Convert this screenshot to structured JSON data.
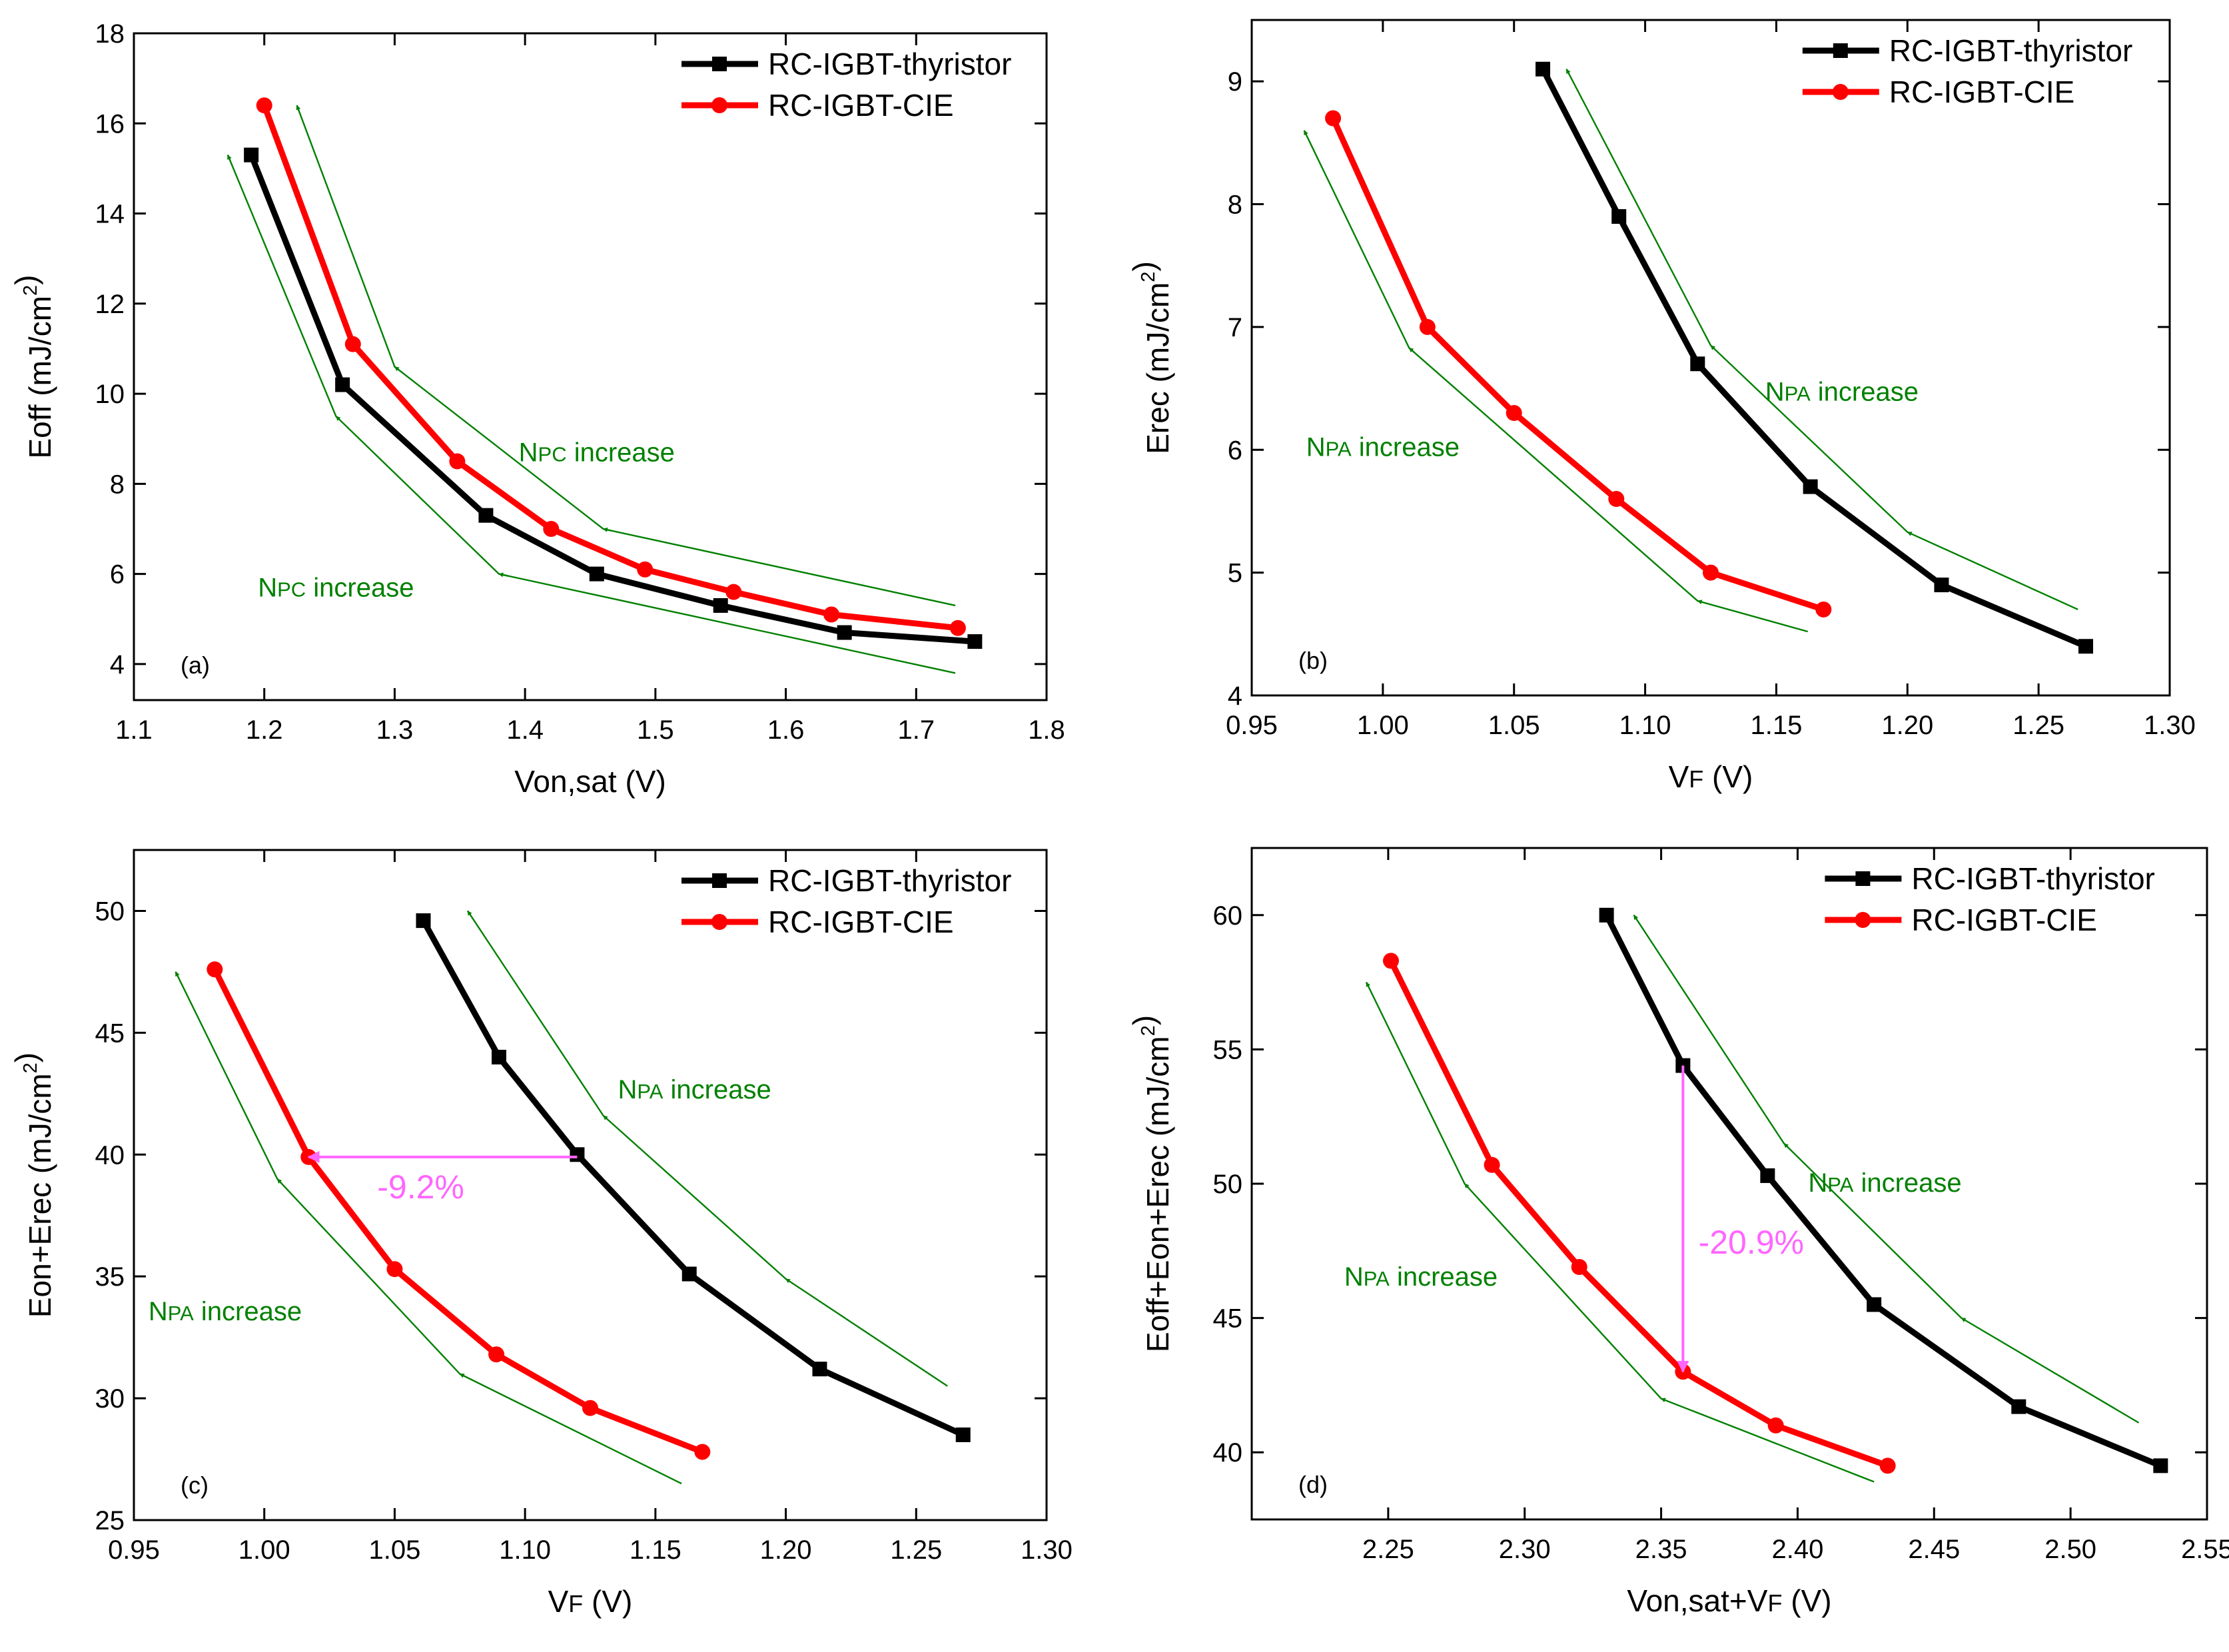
{
  "chart_data": [
    {
      "type": "line",
      "panel_label": "(a)",
      "xlabel": "Von,sat (V)",
      "ylabel": "Eoff (mJ/cm2)",
      "xlim": [
        1.1,
        1.8
      ],
      "ylim": [
        3.2,
        18
      ],
      "xticks": [
        1.1,
        1.2,
        1.3,
        1.4,
        1.5,
        1.6,
        1.7,
        1.8
      ],
      "yticks": [
        4,
        6,
        8,
        10,
        12,
        14,
        16,
        18
      ],
      "xtick_decimals": 1,
      "ytick_decimals": 0,
      "legend": {
        "position": "top-right",
        "items": [
          "RC-IGBT-thyristor",
          "RC-IGBT-CIE"
        ]
      },
      "series": [
        {
          "name": "RC-IGBT-thyristor",
          "color": "#000000",
          "marker": "square",
          "x": [
            1.19,
            1.26,
            1.37,
            1.455,
            1.55,
            1.645,
            1.745
          ],
          "y": [
            15.3,
            10.2,
            7.3,
            6.0,
            5.3,
            4.7,
            4.5
          ]
        },
        {
          "name": "RC-IGBT-CIE",
          "color": "#ff0000",
          "marker": "circle",
          "x": [
            1.2,
            1.268,
            1.348,
            1.42,
            1.492,
            1.56,
            1.635,
            1.732
          ],
          "y": [
            16.4,
            11.1,
            8.5,
            7.0,
            6.1,
            5.6,
            5.1,
            4.8
          ]
        }
      ],
      "guides": [
        {
          "color": "#008000",
          "points": [
            [
              1.73,
              5.3
            ],
            [
              1.46,
              7.0
            ],
            [
              1.3,
              10.6
            ],
            [
              1.225,
              16.4
            ]
          ]
        },
        {
          "color": "#008000",
          "points": [
            [
              1.73,
              3.8
            ],
            [
              1.38,
              6.0
            ],
            [
              1.255,
              9.5
            ],
            [
              1.172,
              15.3
            ]
          ]
        }
      ],
      "texts": [
        {
          "text": "NPC increase",
          "x": 1.455,
          "y": 8.5,
          "color": "#008000"
        },
        {
          "text": "NPC increase",
          "x": 1.255,
          "y": 5.5,
          "color": "#008000"
        }
      ],
      "measures": []
    },
    {
      "type": "line",
      "panel_label": "(b)",
      "xlabel": "VF (V)",
      "ylabel": "Erec (mJ/cm2)",
      "xlim": [
        0.95,
        1.3
      ],
      "ylim": [
        4,
        9.5
      ],
      "xticks": [
        0.95,
        1.0,
        1.05,
        1.1,
        1.15,
        1.2,
        1.25,
        1.3
      ],
      "yticks": [
        4,
        5,
        6,
        7,
        8,
        9
      ],
      "xtick_decimals": 2,
      "ytick_decimals": 0,
      "legend": {
        "position": "top-right",
        "items": [
          "RC-IGBT-thyristor",
          "RC-IGBT-CIE"
        ]
      },
      "series": [
        {
          "name": "RC-IGBT-thyristor",
          "color": "#000000",
          "marker": "square",
          "x": [
            1.061,
            1.09,
            1.12,
            1.163,
            1.213,
            1.268
          ],
          "y": [
            9.1,
            7.9,
            6.7,
            5.7,
            4.9,
            4.4
          ]
        },
        {
          "name": "RC-IGBT-CIE",
          "color": "#ff0000",
          "marker": "circle",
          "x": [
            0.981,
            1.017,
            1.05,
            1.089,
            1.125,
            1.168
          ],
          "y": [
            8.7,
            7.0,
            6.3,
            5.6,
            5.0,
            4.7
          ]
        }
      ],
      "guides": [
        {
          "color": "#008000",
          "points": [
            [
              1.265,
              4.7
            ],
            [
              1.2,
              5.33
            ],
            [
              1.125,
              6.85
            ],
            [
              1.07,
              9.1
            ]
          ]
        },
        {
          "color": "#008000",
          "points": [
            [
              1.162,
              4.52
            ],
            [
              1.12,
              4.77
            ],
            [
              1.01,
              6.83
            ],
            [
              0.97,
              8.6
            ]
          ]
        }
      ],
      "texts": [
        {
          "text": "NPA increase",
          "x": 1.175,
          "y": 6.4,
          "color": "#008000"
        },
        {
          "text": "NPA increase",
          "x": 1.0,
          "y": 5.95,
          "color": "#008000"
        }
      ],
      "measures": []
    },
    {
      "type": "line",
      "panel_label": "(c)",
      "xlabel": "VF (V)",
      "ylabel": "Eon+Erec (mJ/cm2)",
      "xlim": [
        0.95,
        1.3
      ],
      "ylim": [
        25,
        52.5
      ],
      "xticks": [
        0.95,
        1.0,
        1.05,
        1.1,
        1.15,
        1.2,
        1.25,
        1.3
      ],
      "yticks": [
        25,
        30,
        35,
        40,
        45,
        50
      ],
      "xtick_decimals": 2,
      "ytick_decimals": 0,
      "legend": {
        "position": "top-right",
        "items": [
          "RC-IGBT-thyristor",
          "RC-IGBT-CIE"
        ]
      },
      "series": [
        {
          "name": "RC-IGBT-thyristor",
          "color": "#000000",
          "marker": "square",
          "x": [
            1.061,
            1.09,
            1.12,
            1.163,
            1.213,
            1.268
          ],
          "y": [
            49.6,
            44.0,
            40.0,
            35.1,
            31.2,
            28.5
          ]
        },
        {
          "name": "RC-IGBT-CIE",
          "color": "#ff0000",
          "marker": "circle",
          "x": [
            0.981,
            1.017,
            1.05,
            1.089,
            1.125,
            1.168
          ],
          "y": [
            47.6,
            39.9,
            35.3,
            31.8,
            29.6,
            27.8
          ]
        }
      ],
      "guides": [
        {
          "color": "#008000",
          "points": [
            [
              1.262,
              30.5
            ],
            [
              1.2,
              34.9
            ],
            [
              1.13,
              41.6
            ],
            [
              1.078,
              50.0
            ]
          ]
        },
        {
          "color": "#008000",
          "points": [
            [
              1.16,
              26.5
            ],
            [
              1.075,
              31.0
            ],
            [
              1.005,
              39.0
            ],
            [
              0.966,
              47.5
            ]
          ]
        }
      ],
      "texts": [
        {
          "text": "NPA increase",
          "x": 1.165,
          "y": 42.3,
          "color": "#008000"
        },
        {
          "text": "NPA increase",
          "x": 0.985,
          "y": 33.2,
          "color": "#008000"
        }
      ],
      "measures": [
        {
          "color": "#ff66ff",
          "from": [
            1.12,
            39.9
          ],
          "to": [
            1.017,
            39.9
          ],
          "text": "-9.2%",
          "tx": 1.06,
          "ty": 38.2
        }
      ]
    },
    {
      "type": "line",
      "panel_label": "(d)",
      "xlabel": "Von,sat+VF (V)",
      "ylabel": "Eoff+Eon+Erec (mJ/cm2)",
      "xlim": [
        2.2,
        2.55
      ],
      "ylim": [
        37.5,
        62.5
      ],
      "xticks": [
        2.25,
        2.3,
        2.35,
        2.4,
        2.45,
        2.5,
        2.55
      ],
      "yticks": [
        40,
        45,
        50,
        55,
        60
      ],
      "xtick_decimals": 2,
      "ytick_decimals": 0,
      "legend": {
        "position": "top-right",
        "items": [
          "RC-IGBT-thyristor",
          "RC-IGBT-CIE"
        ]
      },
      "series": [
        {
          "name": "RC-IGBT-thyristor",
          "color": "#000000",
          "marker": "square",
          "x": [
            2.33,
            2.358,
            2.389,
            2.428,
            2.481,
            2.533
          ],
          "y": [
            60.0,
            54.4,
            50.3,
            45.5,
            41.7,
            39.5
          ]
        },
        {
          "name": "RC-IGBT-CIE",
          "color": "#ff0000",
          "marker": "circle",
          "x": [
            2.251,
            2.288,
            2.32,
            2.358,
            2.392,
            2.433
          ],
          "y": [
            58.3,
            50.7,
            46.9,
            43.0,
            41.0,
            39.5
          ]
        }
      ],
      "guides": [
        {
          "color": "#008000",
          "points": [
            [
              2.525,
              41.1
            ],
            [
              2.46,
              45.0
            ],
            [
              2.395,
              51.5
            ],
            [
              2.34,
              60.0
            ]
          ]
        },
        {
          "color": "#008000",
          "points": [
            [
              2.428,
              38.9
            ],
            [
              2.35,
              42.0
            ],
            [
              2.278,
              50.0
            ],
            [
              2.242,
              57.5
            ]
          ]
        }
      ],
      "texts": [
        {
          "text": "NPA increase",
          "x": 2.432,
          "y": 49.7,
          "color": "#008000"
        },
        {
          "text": "NPA increase",
          "x": 2.262,
          "y": 46.2,
          "color": "#008000"
        }
      ],
      "measures": [
        {
          "color": "#ff66ff",
          "from": [
            2.358,
            54.4
          ],
          "to": [
            2.358,
            43.0
          ],
          "text": "-20.9%",
          "tx": 2.383,
          "ty": 47.4
        }
      ]
    }
  ]
}
